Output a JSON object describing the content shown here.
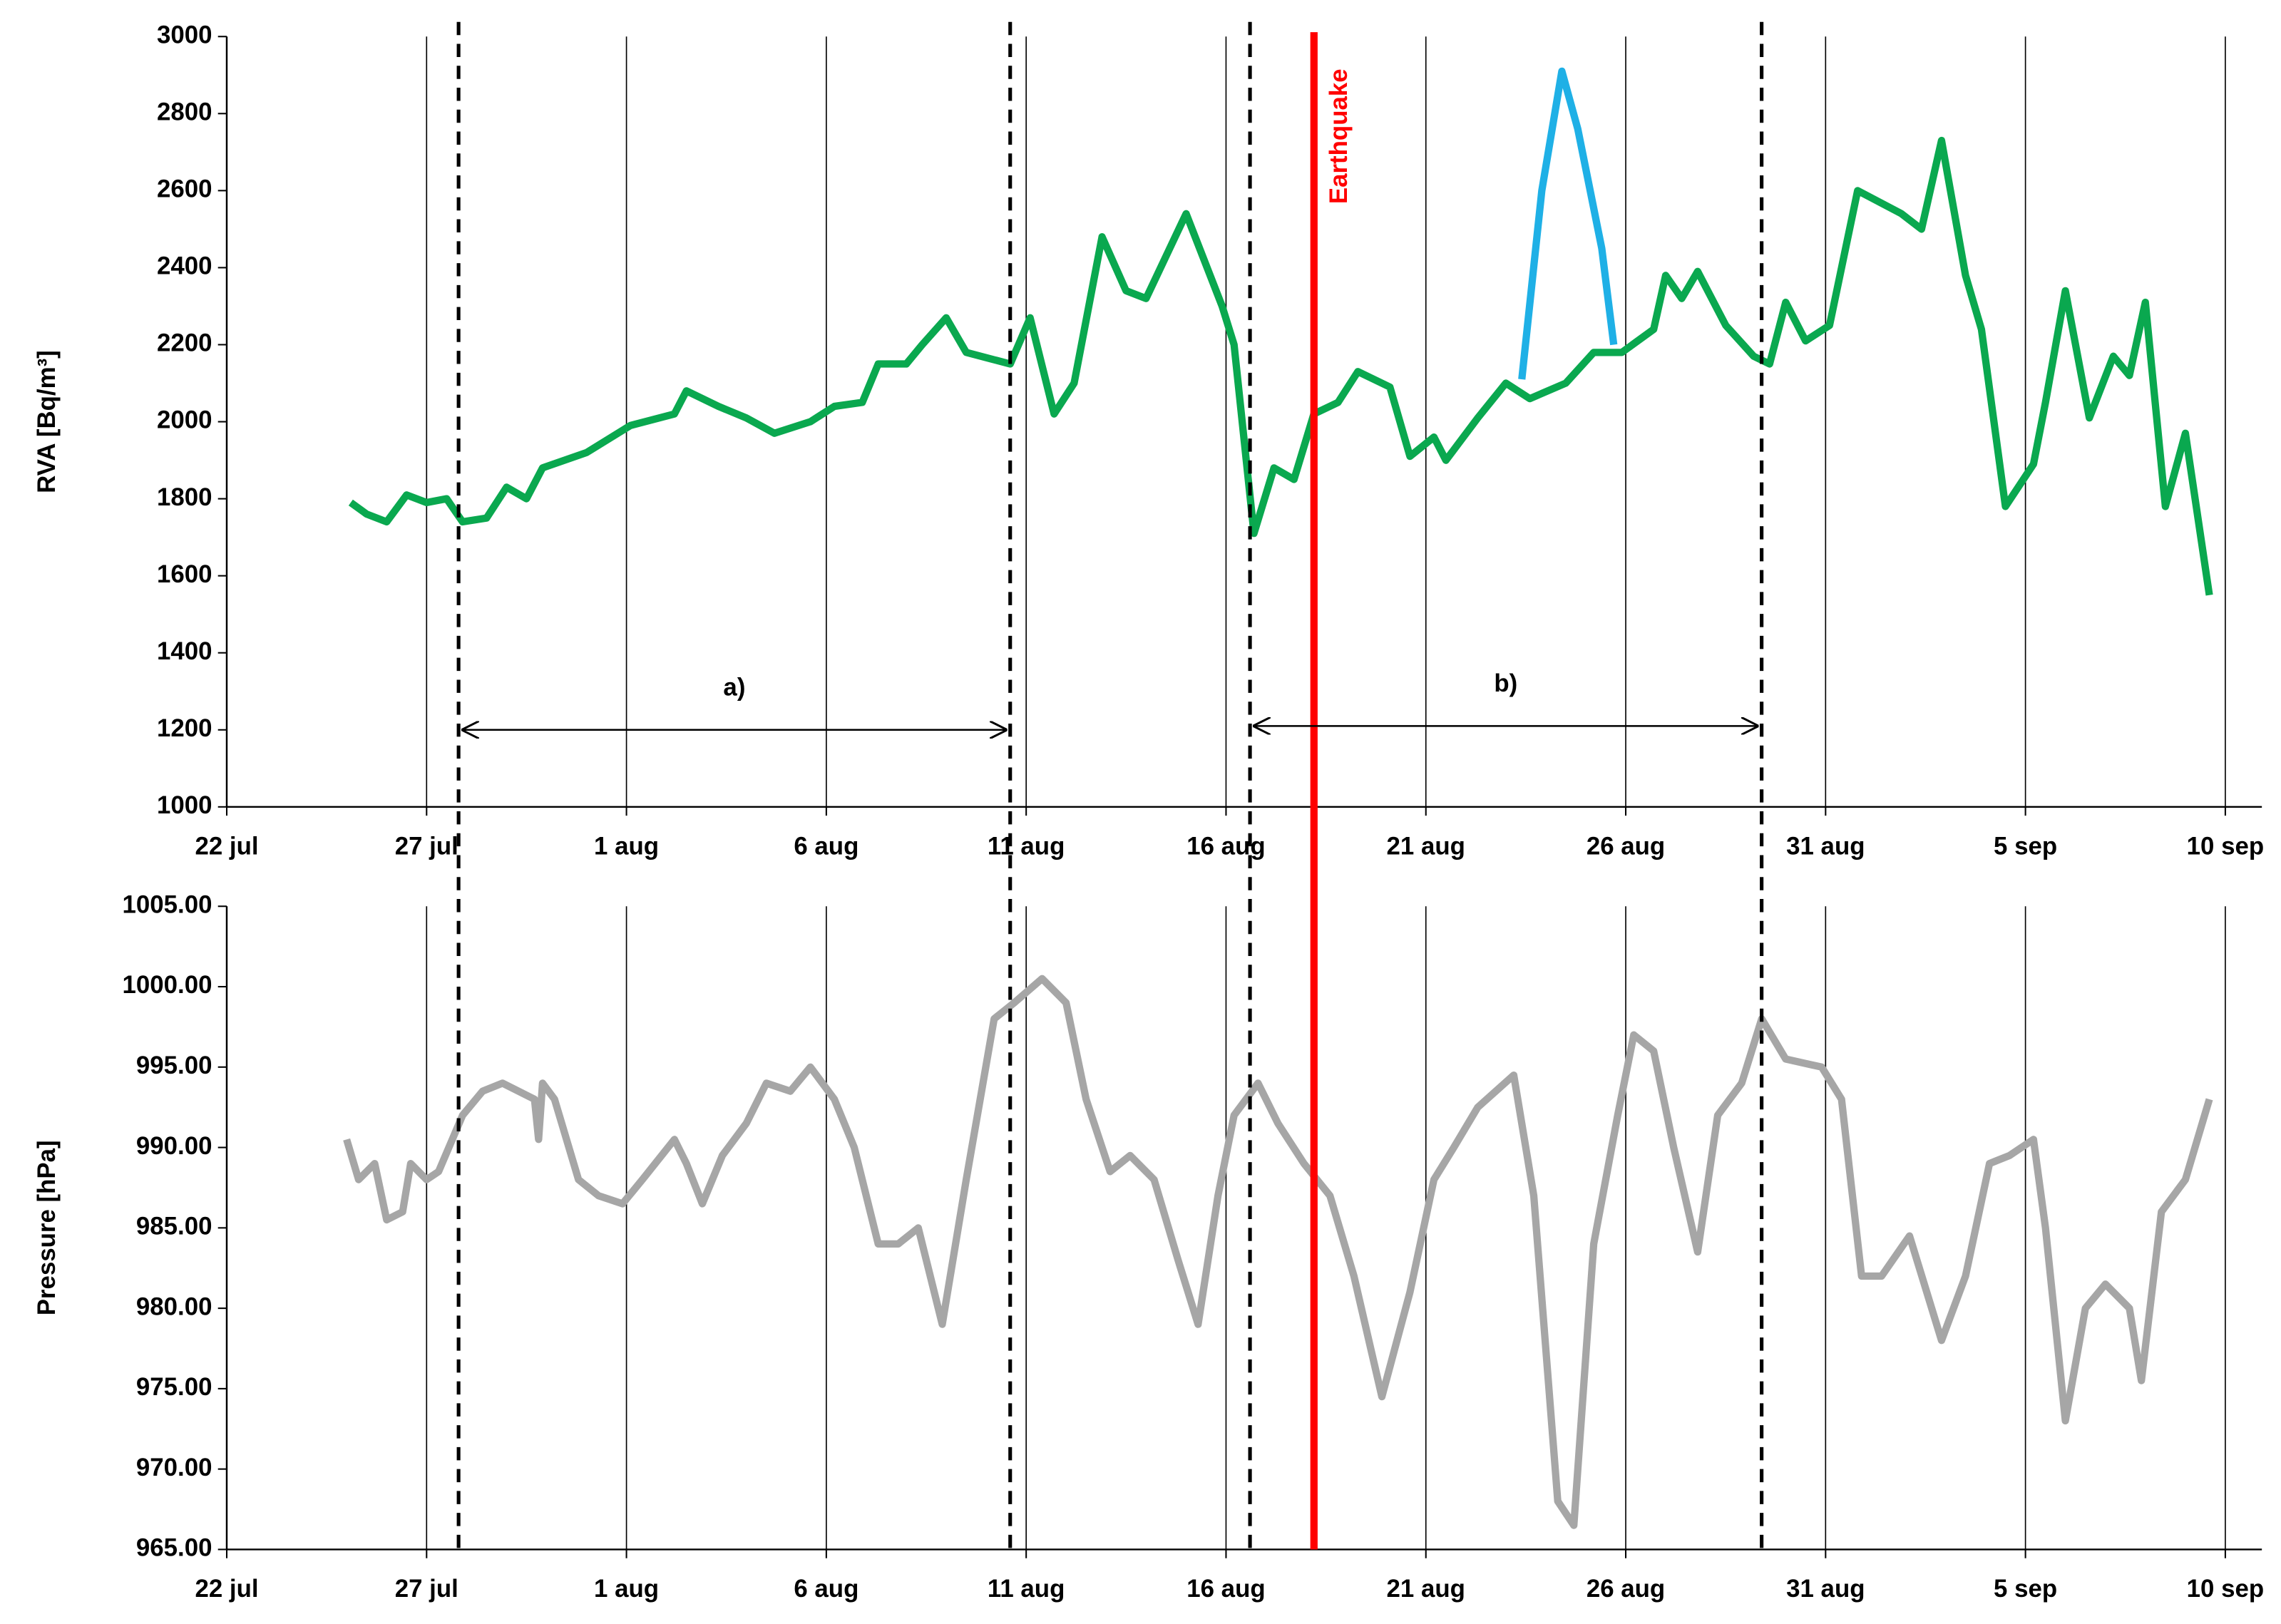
{
  "chart_data": [
    {
      "type": "line",
      "y_label": "RVA [Bq/m³]",
      "xlim": [
        0,
        50
      ],
      "xticks": [
        {
          "value": 0,
          "label": "22 jul"
        },
        {
          "value": 5,
          "label": "27 jul"
        },
        {
          "value": 10,
          "label": "1 aug"
        },
        {
          "value": 15,
          "label": "6 aug"
        },
        {
          "value": 20,
          "label": "11 aug"
        },
        {
          "value": 25,
          "label": "16 aug"
        },
        {
          "value": 30,
          "label": "21 aug"
        },
        {
          "value": 35,
          "label": "26 aug"
        },
        {
          "value": 40,
          "label": "31 aug"
        },
        {
          "value": 45,
          "label": "5 sep"
        },
        {
          "value": 50,
          "label": "10 sep"
        }
      ],
      "ylim": [
        1000,
        3000
      ],
      "yticks": [
        1000,
        1200,
        1400,
        1600,
        1800,
        2000,
        2200,
        2400,
        2600,
        2800,
        3000
      ],
      "grid": true,
      "series": [
        {
          "color": "#0aa84f",
          "x": [
            3.1,
            3.5,
            4.0,
            4.5,
            5.0,
            5.5,
            5.9,
            6.5,
            7.0,
            7.5,
            7.9,
            9.0,
            10.1,
            11.2,
            11.5,
            12.3,
            13.0,
            13.7,
            14.6,
            15.2,
            15.9,
            16.3,
            17.0,
            17.4,
            18.0,
            18.5,
            19.6,
            20.1,
            20.7,
            21.2,
            21.9,
            22.5,
            23.0,
            24.0,
            24.3,
            24.9,
            25.2,
            25.7,
            26.2,
            26.7,
            27.2,
            27.8,
            28.3,
            29.1,
            29.6,
            30.2,
            30.5,
            31.3,
            32.0,
            32.6,
            33.5,
            34.2,
            34.9,
            35.7,
            36.0,
            36.4,
            36.8,
            37.5,
            38.2,
            38.6,
            39.0,
            39.5,
            40.1,
            40.8,
            41.9,
            42.4,
            42.9,
            43.5,
            43.9,
            44.5,
            45.2,
            45.5,
            46.0,
            46.6,
            47.2,
            47.6,
            48.0,
            48.5,
            49.0,
            49.6
          ],
          "values": [
            1790,
            1760,
            1740,
            1810,
            1790,
            1800,
            1740,
            1750,
            1830,
            1800,
            1880,
            1920,
            1990,
            2020,
            2080,
            2040,
            2010,
            1970,
            2000,
            2040,
            2050,
            2150,
            2150,
            2200,
            2270,
            2180,
            2150,
            2270,
            2020,
            2100,
            2480,
            2340,
            2320,
            2540,
            2460,
            2300,
            2200,
            1710,
            1880,
            1850,
            2020,
            2050,
            2130,
            2090,
            1910,
            1960,
            1900,
            2010,
            2100,
            2060,
            2100,
            2180,
            2180,
            2240,
            2380,
            2320,
            2390,
            2250,
            2170,
            2150,
            2310,
            2210,
            2250,
            2600,
            2540,
            2500,
            2730,
            2380,
            2240,
            1780,
            1890,
            2050,
            2340,
            2010,
            2170,
            2120,
            2310,
            1780,
            1970,
            1550
          ]
        },
        {
          "color": "#1fb0e6",
          "x": [
            32.4,
            32.9,
            33.4,
            33.8,
            34.4,
            34.7
          ],
          "values": [
            2110,
            2600,
            2910,
            2760,
            2450,
            2200
          ]
        }
      ],
      "vlines": [
        5.8,
        19.6,
        25.6,
        38.4
      ],
      "event": {
        "label": "Earthquake",
        "x": 27.2,
        "color": "#ff0000"
      },
      "annotations": [
        {
          "text": "a)",
          "x": [
            5.8,
            19.6
          ],
          "y": 1200
        },
        {
          "text": "b)",
          "x": [
            25.6,
            38.4
          ],
          "y": 1210
        }
      ]
    },
    {
      "type": "line",
      "y_label": "Pressure [hPa]",
      "xlim": [
        0,
        50
      ],
      "xticks": [
        {
          "value": 0,
          "label": "22 jul"
        },
        {
          "value": 5,
          "label": "27 jul"
        },
        {
          "value": 10,
          "label": "1 aug"
        },
        {
          "value": 15,
          "label": "6 aug"
        },
        {
          "value": 20,
          "label": "11 aug"
        },
        {
          "value": 25,
          "label": "16 aug"
        },
        {
          "value": 30,
          "label": "21 aug"
        },
        {
          "value": 35,
          "label": "26 aug"
        },
        {
          "value": 40,
          "label": "31 aug"
        },
        {
          "value": 45,
          "label": "5 sep"
        },
        {
          "value": 50,
          "label": "10 sep"
        }
      ],
      "ylim": [
        965,
        1005
      ],
      "yticks": [
        {
          "value": 965,
          "label": "965.00"
        },
        {
          "value": 970,
          "label": "970.00"
        },
        {
          "value": 975,
          "label": "975.00"
        },
        {
          "value": 980,
          "label": "980.00"
        },
        {
          "value": 985,
          "label": "985.00"
        },
        {
          "value": 990,
          "label": "990.00"
        },
        {
          "value": 995,
          "label": "995.00"
        },
        {
          "value": 1000,
          "label": "1000.00"
        },
        {
          "value": 1005,
          "label": "1005.00"
        }
      ],
      "grid": true,
      "series": [
        {
          "color": "#a6a6a6",
          "x": [
            3.0,
            3.3,
            3.7,
            4.0,
            4.4,
            4.6,
            5.0,
            5.3,
            5.9,
            6.4,
            6.9,
            7.7,
            7.8,
            7.9,
            8.2,
            8.8,
            9.3,
            9.9,
            10.4,
            11.2,
            11.5,
            11.9,
            12.4,
            13.0,
            13.5,
            14.1,
            14.6,
            15.2,
            15.7,
            16.3,
            16.8,
            17.3,
            17.9,
            18.5,
            19.2,
            19.7,
            20.4,
            21.0,
            21.5,
            22.1,
            22.6,
            23.2,
            23.8,
            24.3,
            24.8,
            25.2,
            25.8,
            26.3,
            26.95,
            27.6,
            28.2,
            28.9,
            29.6,
            30.2,
            30.7,
            31.3,
            32.2,
            32.7,
            33.3,
            33.7,
            34.2,
            34.8,
            35.2,
            35.7,
            36.2,
            36.8,
            37.3,
            37.9,
            38.4,
            39.0,
            39.9,
            40.4,
            40.9,
            41.4,
            42.1,
            42.9,
            43.5,
            44.1,
            44.6,
            45.2,
            45.5,
            46.0,
            46.5,
            47.0,
            47.6,
            47.9,
            48.4,
            49.0,
            49.6
          ],
          "values": [
            990.5,
            988,
            989,
            985.5,
            986,
            989,
            988,
            988.5,
            992,
            993.5,
            994,
            993,
            990.5,
            994,
            993,
            988,
            987,
            986.5,
            988,
            990.5,
            989,
            986.5,
            989.5,
            991.5,
            994,
            993.5,
            995,
            993,
            990,
            984,
            984,
            985,
            979,
            988,
            998,
            999,
            1000.5,
            999,
            993,
            988.5,
            989.5,
            988,
            983,
            979,
            987,
            992,
            994,
            991.5,
            989,
            987,
            982,
            974.5,
            981,
            988,
            990,
            992.5,
            994.5,
            987,
            968,
            966.5,
            984,
            992,
            997,
            996,
            990,
            983.5,
            992,
            994,
            998,
            995.5,
            995,
            993,
            982,
            982,
            984.5,
            978,
            982,
            989,
            989.5,
            990.5,
            985,
            973,
            980,
            981.5,
            980,
            975.5,
            986,
            988,
            993
          ]
        }
      ]
    }
  ]
}
